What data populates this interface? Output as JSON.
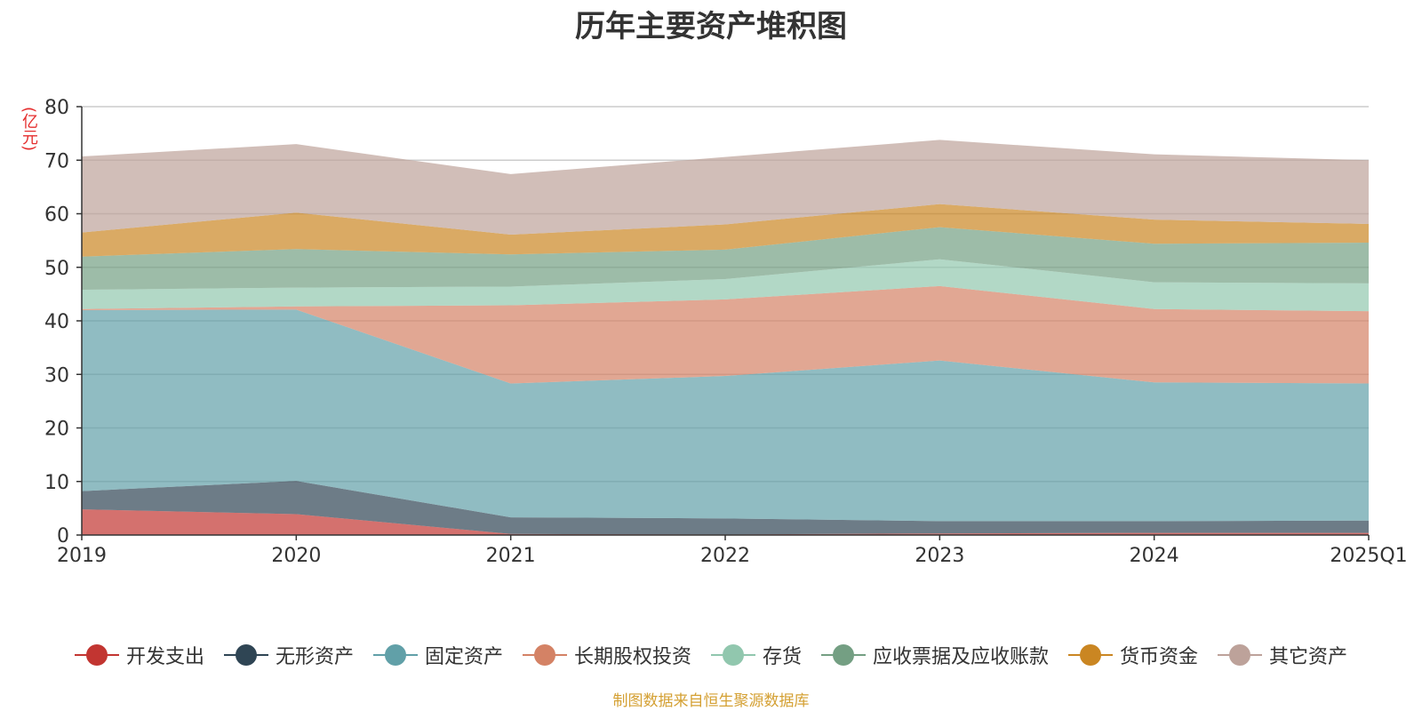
{
  "chart_data": {
    "type": "area",
    "stacked": true,
    "title": "历年主要资产堆积图",
    "unit_label": "(亿元)",
    "x": [
      "2019",
      "2020",
      "2021",
      "2022",
      "2023",
      "2024",
      "2025Q1"
    ],
    "ylim": [
      0,
      80
    ],
    "yticks": [
      0,
      10,
      20,
      30,
      40,
      50,
      60,
      70,
      80
    ],
    "grid": true,
    "legend_position": "bottom",
    "series": [
      {
        "name": "开发支出",
        "color": "#c23531",
        "values": [
          4.8,
          3.9,
          0.2,
          0.1,
          0.3,
          0.4,
          0.4
        ]
      },
      {
        "name": "无形资产",
        "color": "#2f4554",
        "values": [
          3.4,
          6.2,
          3.1,
          3.0,
          2.3,
          2.2,
          2.3
        ]
      },
      {
        "name": "固定资产",
        "color": "#61a0a8",
        "values": [
          33.8,
          32.0,
          25.0,
          26.6,
          30.0,
          25.9,
          25.6
        ]
      },
      {
        "name": "长期股权投资",
        "color": "#d48265",
        "values": [
          0.2,
          0.6,
          14.6,
          14.3,
          13.9,
          13.7,
          13.5
        ]
      },
      {
        "name": "存货",
        "color": "#91c7ae",
        "values": [
          3.6,
          3.5,
          3.5,
          3.8,
          5.0,
          5.0,
          5.2
        ]
      },
      {
        "name": "应收票据及应收账款",
        "color": "#749f83",
        "values": [
          6.2,
          7.2,
          6.0,
          5.5,
          6.0,
          7.2,
          7.6
        ]
      },
      {
        "name": "货币资金",
        "color": "#ca8622",
        "values": [
          4.5,
          6.8,
          3.7,
          4.7,
          4.3,
          4.5,
          3.5
        ]
      },
      {
        "name": "其它资产",
        "color": "#bda29a",
        "values": [
          14.2,
          12.8,
          11.3,
          12.6,
          12.0,
          12.2,
          11.9
        ]
      }
    ]
  },
  "source_text": "制图数据来自恒生聚源数据库"
}
